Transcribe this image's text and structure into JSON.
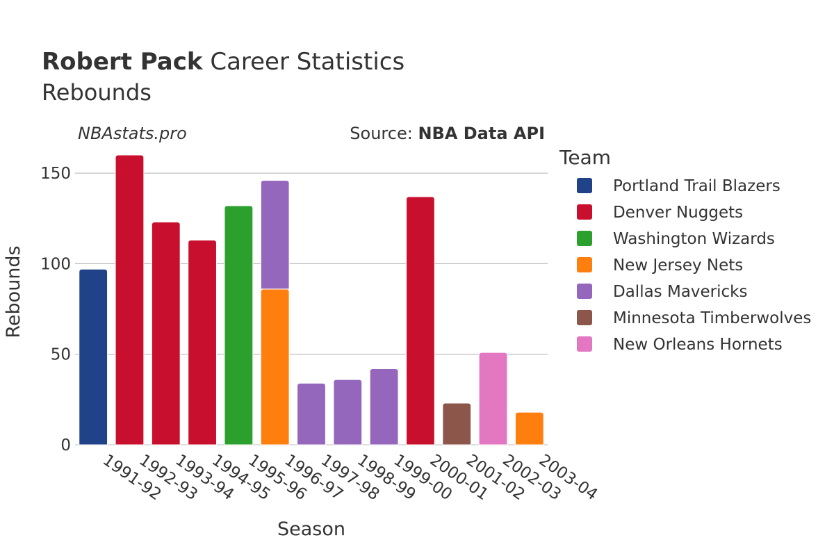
{
  "header": {
    "title_bold": "Robert Pack",
    "title_rest": " Career Statistics",
    "subtitle": "Rebounds"
  },
  "credits": {
    "site": "NBAstats.pro",
    "source_prefix": "Source: ",
    "source_name": "NBA Data API"
  },
  "legend": {
    "title": "Team"
  },
  "chart_data": {
    "type": "bar",
    "stacked": true,
    "xlabel": "Season",
    "ylabel": "Rebounds",
    "ylim": [
      0,
      165
    ],
    "yticks": [
      0,
      50,
      100,
      150
    ],
    "grid": true,
    "legend_position": "right",
    "categories": [
      "1991-92",
      "1992-93",
      "1993-94",
      "1994-95",
      "1995-96",
      "1996-97",
      "1997-98",
      "1998-99",
      "1999-00",
      "2000-01",
      "2001-02",
      "2002-03",
      "2003-04"
    ],
    "series": [
      {
        "name": "Portland Trail Blazers",
        "color": "#1f4288",
        "values": [
          97,
          0,
          0,
          0,
          0,
          0,
          0,
          0,
          0,
          0,
          0,
          0,
          0
        ]
      },
      {
        "name": "Denver Nuggets",
        "color": "#c8102e",
        "values": [
          0,
          160,
          123,
          113,
          0,
          0,
          0,
          0,
          0,
          137,
          0,
          0,
          0
        ]
      },
      {
        "name": "Washington Wizards",
        "color": "#2ca02c",
        "values": [
          0,
          0,
          0,
          0,
          132,
          0,
          0,
          0,
          0,
          0,
          0,
          0,
          0
        ]
      },
      {
        "name": "New Jersey Nets",
        "color": "#ff7f0e",
        "values": [
          0,
          0,
          0,
          0,
          0,
          86,
          0,
          0,
          0,
          0,
          0,
          0,
          18
        ]
      },
      {
        "name": "Dallas Mavericks",
        "color": "#9467bd",
        "values": [
          0,
          0,
          0,
          0,
          0,
          60,
          34,
          36,
          42,
          0,
          0,
          0,
          0
        ]
      },
      {
        "name": "Minnesota Timberwolves",
        "color": "#8c564b",
        "values": [
          0,
          0,
          0,
          0,
          0,
          0,
          0,
          0,
          0,
          0,
          23,
          0,
          0
        ]
      },
      {
        "name": "New Orleans Hornets",
        "color": "#e377c2",
        "values": [
          0,
          0,
          0,
          0,
          0,
          0,
          0,
          0,
          0,
          0,
          0,
          51,
          0
        ]
      }
    ]
  }
}
